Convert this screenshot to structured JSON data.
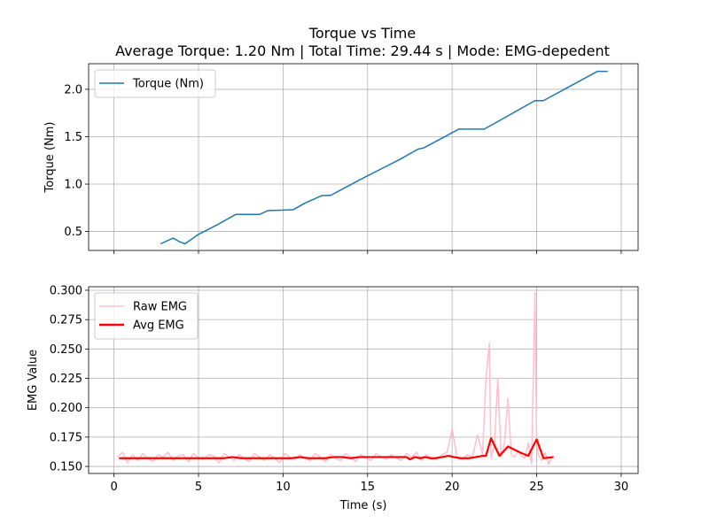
{
  "chart": {
    "title": "Torque vs Time",
    "subtitle": "Average Torque: 1.20 Nm | Total Time: 29.44 s | Mode: EMG-depedent"
  },
  "chart_data": [
    {
      "type": "line",
      "name": "torque_plot",
      "title": "Torque vs Time",
      "subtitle": "Average Torque: 1.20 Nm | Total Time: 29.44 s | Mode: EMG-depedent",
      "xlabel": "",
      "ylabel": "Torque (Nm)",
      "xlim": [
        -1.5,
        31
      ],
      "ylim": [
        0.3,
        2.27
      ],
      "xticks": [
        0,
        5,
        10,
        15,
        20,
        25,
        30
      ],
      "yticks": [
        0.5,
        1.0,
        1.5,
        2.0
      ],
      "ytick_labels": [
        "0.5",
        "1.0",
        "1.5",
        "2.0"
      ],
      "grid": true,
      "legend_position": "top-left",
      "series": [
        {
          "name": "Torque (Nm)",
          "color": "#1f77b4",
          "x": [
            2.75,
            3.5,
            3.9,
            4.2,
            5.0,
            6.1,
            7.2,
            8.6,
            9.1,
            10.6,
            11.3,
            12.3,
            12.8,
            14.8,
            15.8,
            16.9,
            18.0,
            18.3,
            20.4,
            21.9,
            22.5,
            24.9,
            25.4,
            28.6,
            29.2
          ],
          "y": [
            0.37,
            0.43,
            0.39,
            0.37,
            0.47,
            0.57,
            0.68,
            0.68,
            0.72,
            0.73,
            0.8,
            0.88,
            0.88,
            1.07,
            1.16,
            1.26,
            1.37,
            1.38,
            1.58,
            1.58,
            1.64,
            1.88,
            1.88,
            2.19,
            2.19
          ]
        }
      ]
    },
    {
      "type": "line",
      "name": "emg_plot",
      "xlabel": "Time (s)",
      "ylabel": "EMG Value",
      "xlim": [
        -1.5,
        31
      ],
      "ylim": [
        0.144,
        0.303
      ],
      "xticks": [
        0,
        5,
        10,
        15,
        20,
        25,
        30
      ],
      "yticks": [
        0.15,
        0.175,
        0.2,
        0.225,
        0.25,
        0.275,
        0.3
      ],
      "ytick_labels": [
        "0.150",
        "0.175",
        "0.200",
        "0.225",
        "0.250",
        "0.275",
        "0.300"
      ],
      "grid": true,
      "legend_position": "top-left",
      "series": [
        {
          "name": "Raw EMG",
          "color": "#ffc0cb",
          "x": [
            0.2,
            0.5,
            0.8,
            1.1,
            1.4,
            1.7,
            2.0,
            2.3,
            2.6,
            2.9,
            3.2,
            3.5,
            3.8,
            4.1,
            4.4,
            4.7,
            5.0,
            5.3,
            5.6,
            5.9,
            6.2,
            6.5,
            6.8,
            7.1,
            7.4,
            7.7,
            8.0,
            8.3,
            8.6,
            8.9,
            9.2,
            9.5,
            9.8,
            10.1,
            10.4,
            10.7,
            11.0,
            11.3,
            11.6,
            11.9,
            12.2,
            12.5,
            12.8,
            13.1,
            13.4,
            13.7,
            14.0,
            14.3,
            14.6,
            14.9,
            15.2,
            15.5,
            15.8,
            16.1,
            16.4,
            16.7,
            17.0,
            17.3,
            17.6,
            17.9,
            18.2,
            18.5,
            18.8,
            19.1,
            19.4,
            19.7,
            20.0,
            20.3,
            20.6,
            20.9,
            21.2,
            21.5,
            21.8,
            22.0,
            22.2,
            22.3,
            22.5,
            22.7,
            22.9,
            23.1,
            23.3,
            23.5,
            23.7,
            23.9,
            24.1,
            24.3,
            24.5,
            24.7,
            24.9,
            25.0,
            25.1,
            25.3,
            25.5,
            25.7,
            25.9
          ],
          "y": [
            0.158,
            0.162,
            0.153,
            0.16,
            0.155,
            0.161,
            0.157,
            0.154,
            0.16,
            0.158,
            0.162,
            0.155,
            0.159,
            0.16,
            0.154,
            0.161,
            0.157,
            0.156,
            0.16,
            0.159,
            0.153,
            0.161,
            0.158,
            0.155,
            0.16,
            0.157,
            0.154,
            0.161,
            0.158,
            0.155,
            0.16,
            0.157,
            0.153,
            0.161,
            0.158,
            0.156,
            0.16,
            0.157,
            0.155,
            0.161,
            0.158,
            0.154,
            0.16,
            0.157,
            0.155,
            0.161,
            0.158,
            0.154,
            0.16,
            0.157,
            0.155,
            0.161,
            0.158,
            0.156,
            0.16,
            0.157,
            0.155,
            0.161,
            0.158,
            0.162,
            0.155,
            0.16,
            0.157,
            0.156,
            0.16,
            0.162,
            0.182,
            0.157,
            0.156,
            0.16,
            0.158,
            0.177,
            0.16,
            0.225,
            0.255,
            0.157,
            0.168,
            0.225,
            0.158,
            0.17,
            0.208,
            0.16,
            0.158,
            0.163,
            0.159,
            0.157,
            0.17,
            0.152,
            0.298,
            0.172,
            0.16,
            0.155,
            0.162,
            0.152,
            0.158
          ]
        },
        {
          "name": "Avg EMG",
          "color": "#ff0000",
          "x": [
            0.3,
            1.0,
            1.5,
            2.0,
            2.5,
            3.0,
            3.5,
            4.0,
            4.5,
            5.0,
            5.5,
            6.0,
            6.5,
            7.0,
            7.5,
            8.0,
            8.5,
            9.0,
            9.5,
            10.0,
            10.5,
            11.0,
            11.5,
            12.0,
            12.5,
            13.0,
            13.5,
            14.0,
            14.5,
            15.0,
            15.5,
            16.0,
            16.5,
            17.0,
            17.3,
            17.5,
            17.8,
            18.1,
            18.4,
            18.7,
            19.0,
            19.4,
            19.8,
            20.1,
            20.5,
            21.0,
            21.4,
            21.8,
            22.0,
            22.3,
            22.8,
            23.3,
            24.0,
            24.5,
            25.0,
            25.4,
            26.0
          ],
          "y": [
            0.157,
            0.157,
            0.157,
            0.157,
            0.157,
            0.157,
            0.157,
            0.157,
            0.157,
            0.157,
            0.157,
            0.157,
            0.157,
            0.158,
            0.157,
            0.157,
            0.157,
            0.157,
            0.157,
            0.157,
            0.157,
            0.158,
            0.157,
            0.157,
            0.157,
            0.158,
            0.158,
            0.157,
            0.158,
            0.158,
            0.158,
            0.158,
            0.158,
            0.158,
            0.158,
            0.156,
            0.158,
            0.157,
            0.158,
            0.157,
            0.157,
            0.158,
            0.159,
            0.158,
            0.157,
            0.157,
            0.158,
            0.159,
            0.159,
            0.174,
            0.159,
            0.167,
            0.162,
            0.159,
            0.173,
            0.157,
            0.158
          ]
        }
      ]
    }
  ]
}
